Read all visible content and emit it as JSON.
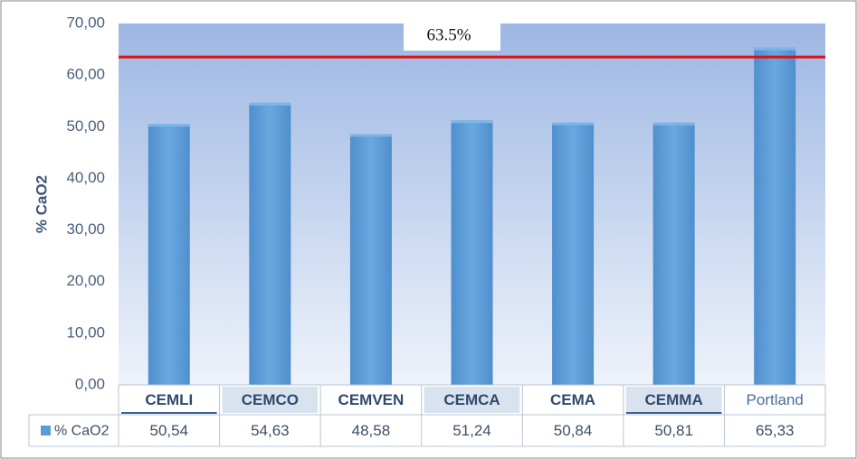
{
  "chart_data": {
    "type": "bar",
    "ylabel": "% CaO2",
    "ylim": [
      0,
      70
    ],
    "yticks": [
      "0,00",
      "10,00",
      "20,00",
      "30,00",
      "40,00",
      "50,00",
      "60,00",
      "70,00"
    ],
    "categories": [
      "CEMLI",
      "CEMCO",
      "CEMVEN",
      "CEMCA",
      "CEMA",
      "CEMMA",
      "Portland"
    ],
    "series": [
      {
        "name": "% CaO2",
        "values": [
          50.54,
          54.63,
          48.58,
          51.24,
          50.84,
          50.81,
          65.33
        ],
        "value_labels": [
          "50,54",
          "54,63",
          "48,58",
          "51,24",
          "50,84",
          "50,81",
          "65,33"
        ]
      }
    ],
    "reference_line": {
      "value": 63.5,
      "label": "63.5%",
      "color": "#dd1111"
    },
    "data_table": true,
    "grid": false,
    "colors": {
      "bar": "#5b9bd5",
      "plot_bg_top": "#9db7e3",
      "plot_bg_bottom": "#eaf0fa",
      "axis_text": "#4a5f7a"
    }
  }
}
